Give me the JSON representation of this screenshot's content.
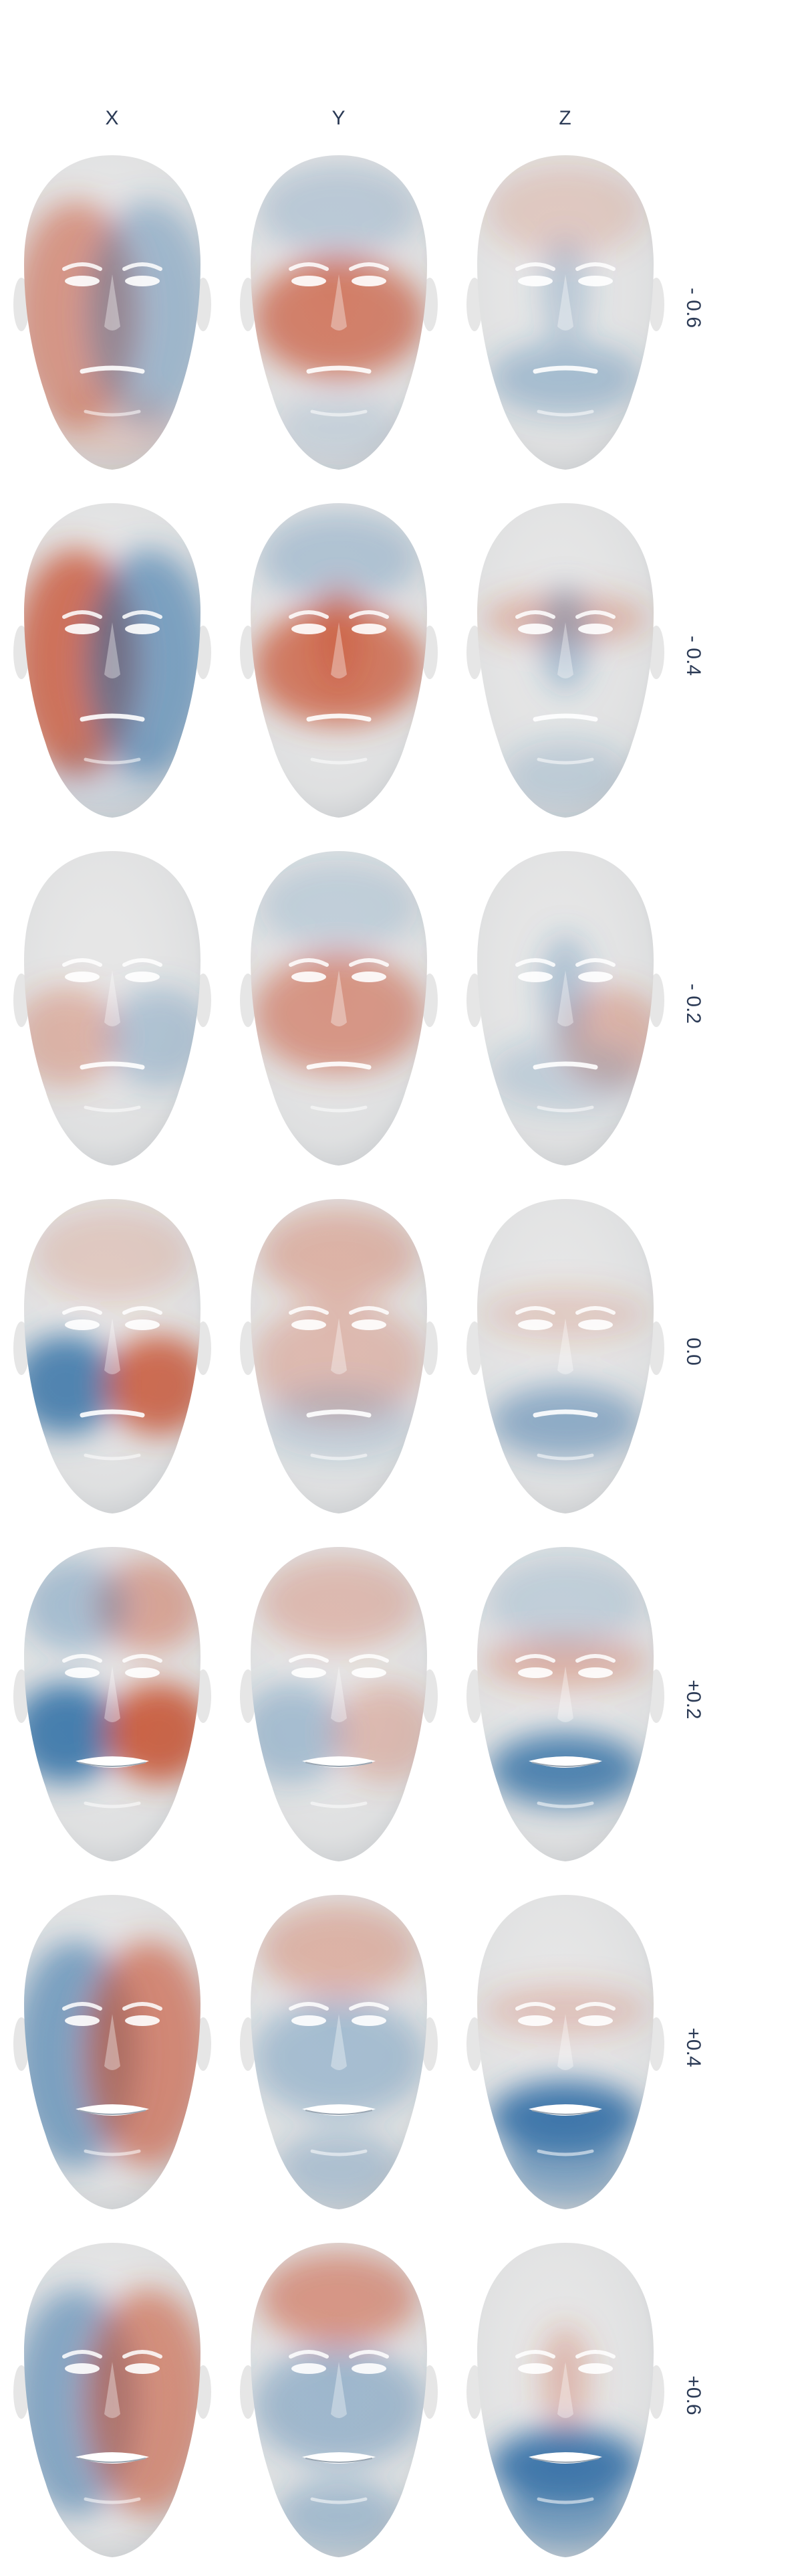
{
  "columns": [
    {
      "label": "X"
    },
    {
      "label": "Y"
    },
    {
      "label": "Z"
    }
  ],
  "rows": [
    {
      "label": "- 0.6"
    },
    {
      "label": "- 0.4"
    },
    {
      "label": "- 0.2"
    },
    {
      "label": "0.0"
    },
    {
      "label": "+0.2"
    },
    {
      "label": "+0.4"
    },
    {
      "label": "+0.6"
    }
  ],
  "colors": {
    "positive": "#c8502e",
    "negative": "#2f6ea5",
    "neutral": "#e6e6e6",
    "text": "#2b3a55"
  },
  "heatmaps": [
    [
      {
        "mouth": "closed",
        "patches": [
          {
            "region": "face-left",
            "tone": "red",
            "level": 0.55
          },
          {
            "region": "face-right",
            "tone": "blue",
            "level": 0.4
          },
          {
            "region": "chin",
            "tone": "red",
            "level": 0.2
          }
        ]
      },
      {
        "mouth": "closed",
        "patches": [
          {
            "region": "cheeks",
            "tone": "red",
            "level": 0.7
          },
          {
            "region": "forehead",
            "tone": "blue",
            "level": 0.25
          },
          {
            "region": "chin",
            "tone": "blue",
            "level": 0.15
          }
        ]
      },
      {
        "mouth": "closed",
        "patches": [
          {
            "region": "forehead",
            "tone": "red",
            "level": 0.2
          },
          {
            "region": "mouth",
            "tone": "blue",
            "level": 0.35
          },
          {
            "region": "nose",
            "tone": "blue",
            "level": 0.25
          }
        ]
      }
    ],
    [
      {
        "mouth": "closed",
        "patches": [
          {
            "region": "face-left",
            "tone": "red",
            "level": 0.8
          },
          {
            "region": "face-right",
            "tone": "blue",
            "level": 0.6
          },
          {
            "region": "chin",
            "tone": "blue",
            "level": 0.15
          }
        ]
      },
      {
        "mouth": "closed",
        "patches": [
          {
            "region": "cheeks",
            "tone": "red",
            "level": 0.75
          },
          {
            "region": "forehead",
            "tone": "blue",
            "level": 0.3
          },
          {
            "region": "nose",
            "tone": "red",
            "level": 0.4
          }
        ]
      },
      {
        "mouth": "closed",
        "patches": [
          {
            "region": "eyes",
            "tone": "red",
            "level": 0.35
          },
          {
            "region": "nose",
            "tone": "blue",
            "level": 0.35
          },
          {
            "region": "chin",
            "tone": "blue",
            "level": 0.2
          }
        ]
      }
    ],
    [
      {
        "mouth": "closed",
        "patches": [
          {
            "region": "cheek-left",
            "tone": "red",
            "level": 0.35
          },
          {
            "region": "cheek-right",
            "tone": "blue",
            "level": 0.3
          }
        ]
      },
      {
        "mouth": "closed",
        "patches": [
          {
            "region": "cheeks",
            "tone": "red",
            "level": 0.55
          },
          {
            "region": "forehead",
            "tone": "blue",
            "level": 0.2
          }
        ]
      },
      {
        "mouth": "closed",
        "patches": [
          {
            "region": "cheek-right",
            "tone": "red",
            "level": 0.35
          },
          {
            "region": "nose",
            "tone": "blue",
            "level": 0.3
          },
          {
            "region": "mouth",
            "tone": "blue",
            "level": 0.2
          }
        ]
      }
    ],
    [
      {
        "mouth": "closed",
        "patches": [
          {
            "region": "cheek-left",
            "tone": "blue",
            "level": 0.85
          },
          {
            "region": "cheek-right",
            "tone": "red",
            "level": 0.85
          },
          {
            "region": "forehead",
            "tone": "red",
            "level": 0.2
          }
        ]
      },
      {
        "mouth": "closed",
        "patches": [
          {
            "region": "forehead",
            "tone": "red",
            "level": 0.35
          },
          {
            "region": "cheeks",
            "tone": "red",
            "level": 0.3
          },
          {
            "region": "mouth",
            "tone": "blue",
            "level": 0.2
          }
        ]
      },
      {
        "mouth": "closed",
        "patches": [
          {
            "region": "mouth",
            "tone": "blue",
            "level": 0.5
          },
          {
            "region": "eyes",
            "tone": "red",
            "level": 0.2
          }
        ]
      }
    ],
    [
      {
        "mouth": "open",
        "patches": [
          {
            "region": "cheek-left",
            "tone": "blue",
            "level": 0.9
          },
          {
            "region": "cheek-right",
            "tone": "red",
            "level": 0.9
          },
          {
            "region": "forehead-right",
            "tone": "red",
            "level": 0.45
          },
          {
            "region": "forehead-left",
            "tone": "blue",
            "level": 0.35
          }
        ]
      },
      {
        "mouth": "open",
        "patches": [
          {
            "region": "forehead",
            "tone": "red",
            "level": 0.3
          },
          {
            "region": "cheek-left",
            "tone": "blue",
            "level": 0.35
          },
          {
            "region": "cheek-right",
            "tone": "red",
            "level": 0.3
          }
        ]
      },
      {
        "mouth": "open",
        "patches": [
          {
            "region": "mouth",
            "tone": "blue",
            "level": 0.85
          },
          {
            "region": "eyes",
            "tone": "red",
            "level": 0.35
          },
          {
            "region": "forehead",
            "tone": "blue",
            "level": 0.2
          }
        ]
      }
    ],
    [
      {
        "mouth": "open",
        "patches": [
          {
            "region": "face-left",
            "tone": "blue",
            "level": 0.6
          },
          {
            "region": "face-right",
            "tone": "red",
            "level": 0.65
          }
        ]
      },
      {
        "mouth": "open",
        "patches": [
          {
            "region": "forehead",
            "tone": "red",
            "level": 0.35
          },
          {
            "region": "cheeks",
            "tone": "blue",
            "level": 0.35
          },
          {
            "region": "chin",
            "tone": "blue",
            "level": 0.3
          }
        ]
      },
      {
        "mouth": "open",
        "patches": [
          {
            "region": "mouth",
            "tone": "blue",
            "level": 0.95
          },
          {
            "region": "chin",
            "tone": "blue",
            "level": 0.55
          },
          {
            "region": "eyes",
            "tone": "red",
            "level": 0.25
          }
        ]
      }
    ],
    [
      {
        "mouth": "open",
        "patches": [
          {
            "region": "face-left",
            "tone": "blue",
            "level": 0.55
          },
          {
            "region": "face-right",
            "tone": "red",
            "level": 0.6
          }
        ]
      },
      {
        "mouth": "open",
        "patches": [
          {
            "region": "forehead",
            "tone": "red",
            "level": 0.55
          },
          {
            "region": "cheeks",
            "tone": "blue",
            "level": 0.4
          },
          {
            "region": "chin",
            "tone": "blue",
            "level": 0.35
          }
        ]
      },
      {
        "mouth": "open",
        "patches": [
          {
            "region": "mouth",
            "tone": "blue",
            "level": 0.95
          },
          {
            "region": "chin",
            "tone": "blue",
            "level": 0.6
          },
          {
            "region": "nose",
            "tone": "red",
            "level": 0.3
          }
        ]
      }
    ]
  ]
}
